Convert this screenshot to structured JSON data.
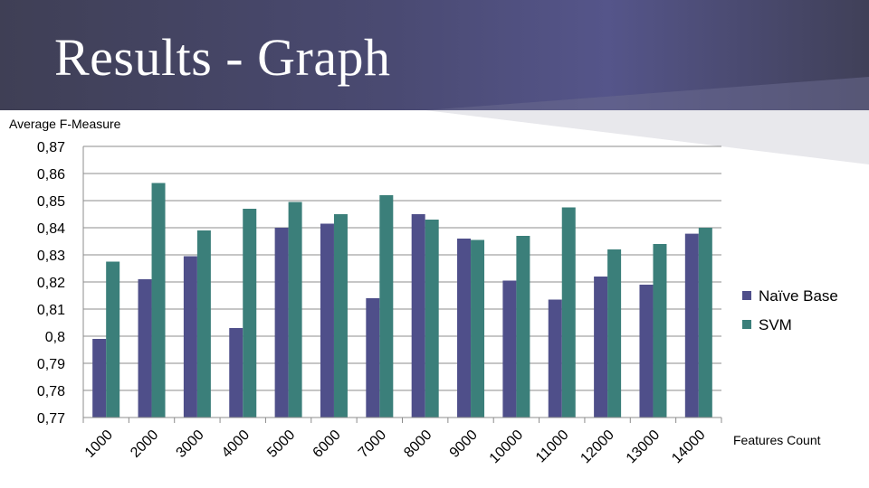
{
  "slide": {
    "title": "Results - Graph"
  },
  "chart_data": {
    "type": "bar",
    "title": "",
    "ylabel": "Average F-Measure",
    "xlabel": "Features Count",
    "ylim": [
      0.77,
      0.87
    ],
    "y_ticks": [
      "0,77",
      "0,78",
      "0,79",
      "0,8",
      "0,81",
      "0,82",
      "0,83",
      "0,84",
      "0,85",
      "0,86",
      "0,87"
    ],
    "grid": true,
    "legend_position": "right",
    "categories": [
      "1000",
      "2000",
      "3000",
      "4000",
      "5000",
      "6000",
      "7000",
      "8000",
      "9000",
      "10000",
      "11000",
      "12000",
      "13000",
      "14000"
    ],
    "series": [
      {
        "name": "Naïve Base",
        "color": "#4f4f8a",
        "values": [
          0.799,
          0.821,
          0.8295,
          0.803,
          0.84,
          0.8415,
          0.814,
          0.845,
          0.836,
          0.8205,
          0.8135,
          0.822,
          0.819,
          0.8378
        ]
      },
      {
        "name": "SVM",
        "color": "#3b7f7a",
        "values": [
          0.8275,
          0.8565,
          0.839,
          0.847,
          0.8495,
          0.845,
          0.852,
          0.843,
          0.8355,
          0.837,
          0.8475,
          0.832,
          0.834,
          0.84
        ]
      }
    ]
  }
}
